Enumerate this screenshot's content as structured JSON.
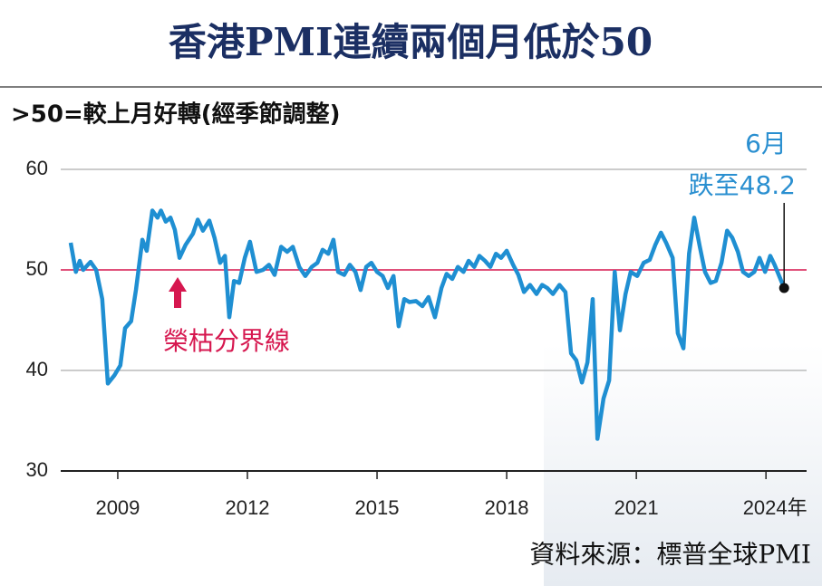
{
  "chart_data": {
    "type": "line",
    "title": "香港PMI連續兩個月低於50",
    "subtitle": ">50=較上月好轉(經季節調整)",
    "source": "資料來源：標普全球PMI",
    "annotation": [
      "6月",
      "跌至48.2"
    ],
    "reference_line": {
      "value": 50,
      "label": "榮枯分界線",
      "color": "#d6174f"
    },
    "color": "#1f8fd2",
    "grid": true,
    "xlim": [
      2007.68,
      2024.94
    ],
    "xticks": [
      2009,
      2012,
      2015,
      2018,
      2021,
      {
        "value": 2024,
        "label": "2024年"
      }
    ],
    "ylim": [
      30,
      60
    ],
    "yticks": [
      30,
      40,
      50,
      60
    ],
    "x": [
      2007.91,
      2008.03,
      2008.12,
      2008.2,
      2008.37,
      2008.5,
      2008.64,
      2008.77,
      2008.92,
      2009.06,
      2009.17,
      2009.31,
      2009.42,
      2009.57,
      2009.67,
      2009.8,
      2009.92,
      2010.0,
      2010.11,
      2010.22,
      2010.32,
      2010.43,
      2010.57,
      2010.74,
      2010.85,
      2010.97,
      2011.12,
      2011.24,
      2011.37,
      2011.48,
      2011.58,
      2011.69,
      2011.81,
      2011.94,
      2012.06,
      2012.21,
      2012.36,
      2012.5,
      2012.63,
      2012.78,
      2012.92,
      2013.05,
      2013.2,
      2013.34,
      2013.49,
      2013.62,
      2013.74,
      2013.87,
      2013.99,
      2014.1,
      2014.24,
      2014.37,
      2014.5,
      2014.62,
      2014.75,
      2014.87,
      2015.0,
      2015.13,
      2015.25,
      2015.38,
      2015.5,
      2015.63,
      2015.75,
      2015.9,
      2016.05,
      2016.19,
      2016.34,
      2016.49,
      2016.61,
      2016.74,
      2016.87,
      2017.0,
      2017.12,
      2017.25,
      2017.37,
      2017.5,
      2017.62,
      2017.75,
      2017.87,
      2018.0,
      2018.15,
      2018.27,
      2018.4,
      2018.54,
      2018.69,
      2018.82,
      2018.94,
      2019.07,
      2019.22,
      2019.36,
      2019.49,
      2019.61,
      2019.74,
      2019.87,
      2019.99,
      2020.1,
      2020.24,
      2020.37,
      2020.5,
      2020.62,
      2020.75,
      2020.87,
      2021.02,
      2021.17,
      2021.31,
      2021.44,
      2021.57,
      2021.69,
      2021.84,
      2021.96,
      2022.09,
      2022.22,
      2022.34,
      2022.47,
      2022.59,
      2022.72,
      2022.84,
      2022.97,
      2023.1,
      2023.22,
      2023.35,
      2023.47,
      2023.6,
      2023.73,
      2023.85,
      2023.98,
      2024.1,
      2024.2,
      2024.42
    ],
    "values": [
      52.7,
      49.8,
      50.9,
      50.0,
      50.8,
      50.0,
      47.1,
      38.7,
      39.5,
      40.5,
      44.2,
      44.9,
      48.0,
      53.0,
      51.9,
      55.9,
      55.2,
      55.9,
      54.8,
      55.2,
      54.0,
      51.2,
      52.5,
      53.6,
      55.0,
      53.9,
      54.9,
      53.2,
      50.7,
      51.4,
      45.3,
      48.9,
      48.7,
      51.2,
      52.8,
      49.8,
      50.0,
      50.5,
      49.5,
      52.3,
      51.8,
      52.3,
      50.3,
      49.4,
      50.3,
      50.7,
      52.0,
      51.6,
      53.0,
      49.8,
      49.5,
      50.5,
      49.8,
      48.0,
      50.3,
      50.7,
      49.8,
      49.4,
      48.2,
      49.4,
      44.4,
      47.1,
      46.8,
      46.9,
      46.4,
      47.3,
      45.3,
      48.2,
      49.6,
      49.1,
      50.3,
      49.8,
      50.9,
      50.3,
      51.4,
      50.9,
      50.3,
      51.6,
      51.2,
      51.9,
      50.5,
      49.5,
      47.8,
      48.5,
      47.6,
      48.5,
      48.2,
      47.6,
      48.5,
      47.8,
      41.7,
      41.0,
      38.8,
      40.8,
      47.1,
      33.2,
      37.2,
      39.0,
      49.8,
      44.0,
      47.6,
      49.8,
      49.4,
      50.7,
      51.0,
      52.5,
      53.7,
      52.7,
      51.2,
      43.7,
      42.2,
      51.6,
      55.2,
      52.3,
      49.8,
      48.7,
      48.9,
      50.7,
      53.9,
      53.2,
      51.8,
      49.8,
      49.4,
      49.8,
      51.2,
      49.8,
      51.4,
      50.5,
      48.2
    ]
  }
}
